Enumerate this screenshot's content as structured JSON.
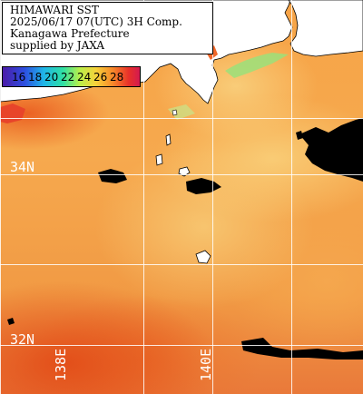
{
  "info": {
    "lines": [
      "HIMAWARI SST",
      "2025/06/17 07(UTC) 3H Comp.",
      "Kanagawa Prefecture",
      "supplied by JAXA"
    ]
  },
  "colorbar": {
    "ticks": [
      "16",
      "18",
      "20",
      "22",
      "24",
      "26",
      "28"
    ],
    "colors": [
      "#4a1aa8",
      "#2d4fe0",
      "#1fb6e8",
      "#2fe0a4",
      "#b8f04a",
      "#f7d23a",
      "#f78a2a",
      "#e8302a",
      "#d41a50"
    ]
  },
  "grid": {
    "lat_labels": [
      "34N",
      "32N"
    ],
    "lon_labels": [
      "138E",
      "140E"
    ]
  },
  "colors": {
    "land": "#ffffff",
    "no_data": "#000000",
    "grid": "#ffffff",
    "warm_sea": "#f39a45",
    "hot_sea": "#e8542a",
    "cool_coastal": "#7be07a"
  }
}
